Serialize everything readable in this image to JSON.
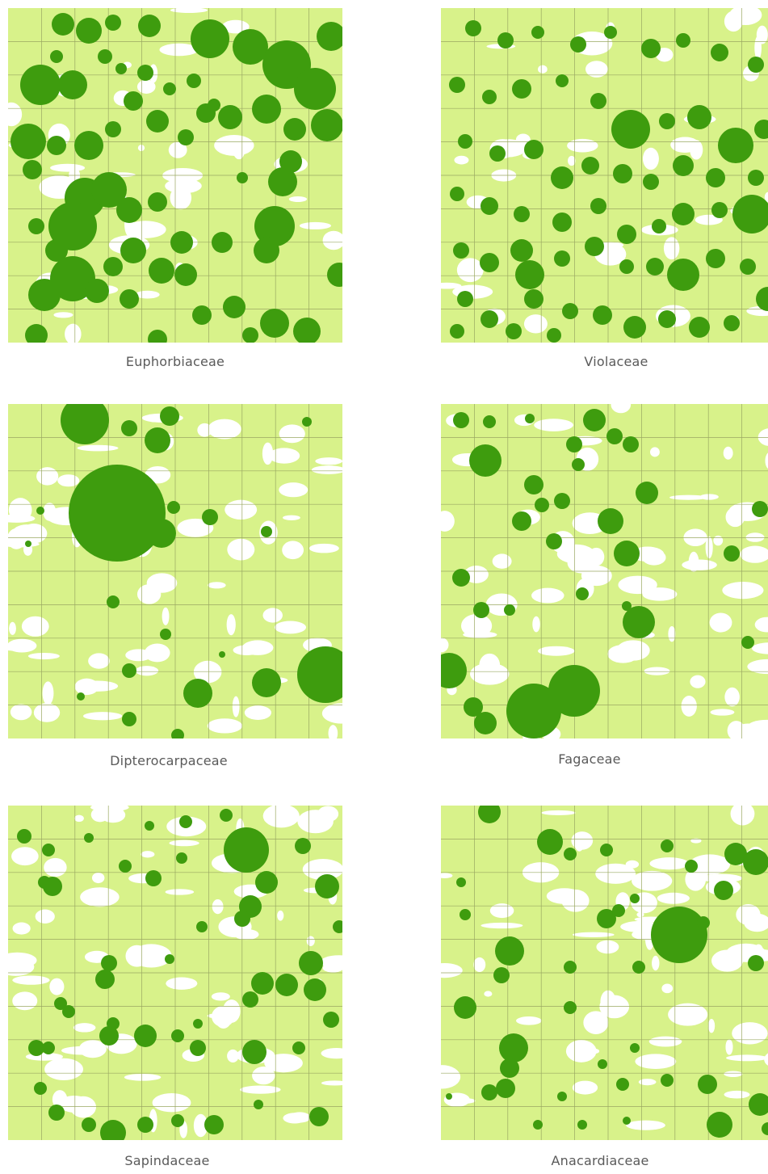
{
  "colors": {
    "ground": "#d8f28a",
    "gap": "#ffffff",
    "crown": "#3e9c0e",
    "grid": "#9aa862"
  },
  "panels": [
    {
      "id": "euphorbiaceae",
      "label": "Euphorbiaceae",
      "density": "very-high",
      "grid_cells": 10
    },
    {
      "id": "violaceae",
      "label": "Violaceae",
      "density": "very-high",
      "grid_cells": 10
    },
    {
      "id": "dipterocarpaceae",
      "label": "Dipterocarpaceae",
      "density": "low",
      "grid_cells": 10
    },
    {
      "id": "fagaceae",
      "label": "Fagaceae",
      "density": "medium",
      "grid_cells": 10
    },
    {
      "id": "sapindaceae",
      "label": "Sapindaceae",
      "density": "medium",
      "grid_cells": 10
    },
    {
      "id": "anacardiaceae",
      "label": "Anacardiaceae",
      "density": "medium",
      "grid_cells": 10
    }
  ]
}
